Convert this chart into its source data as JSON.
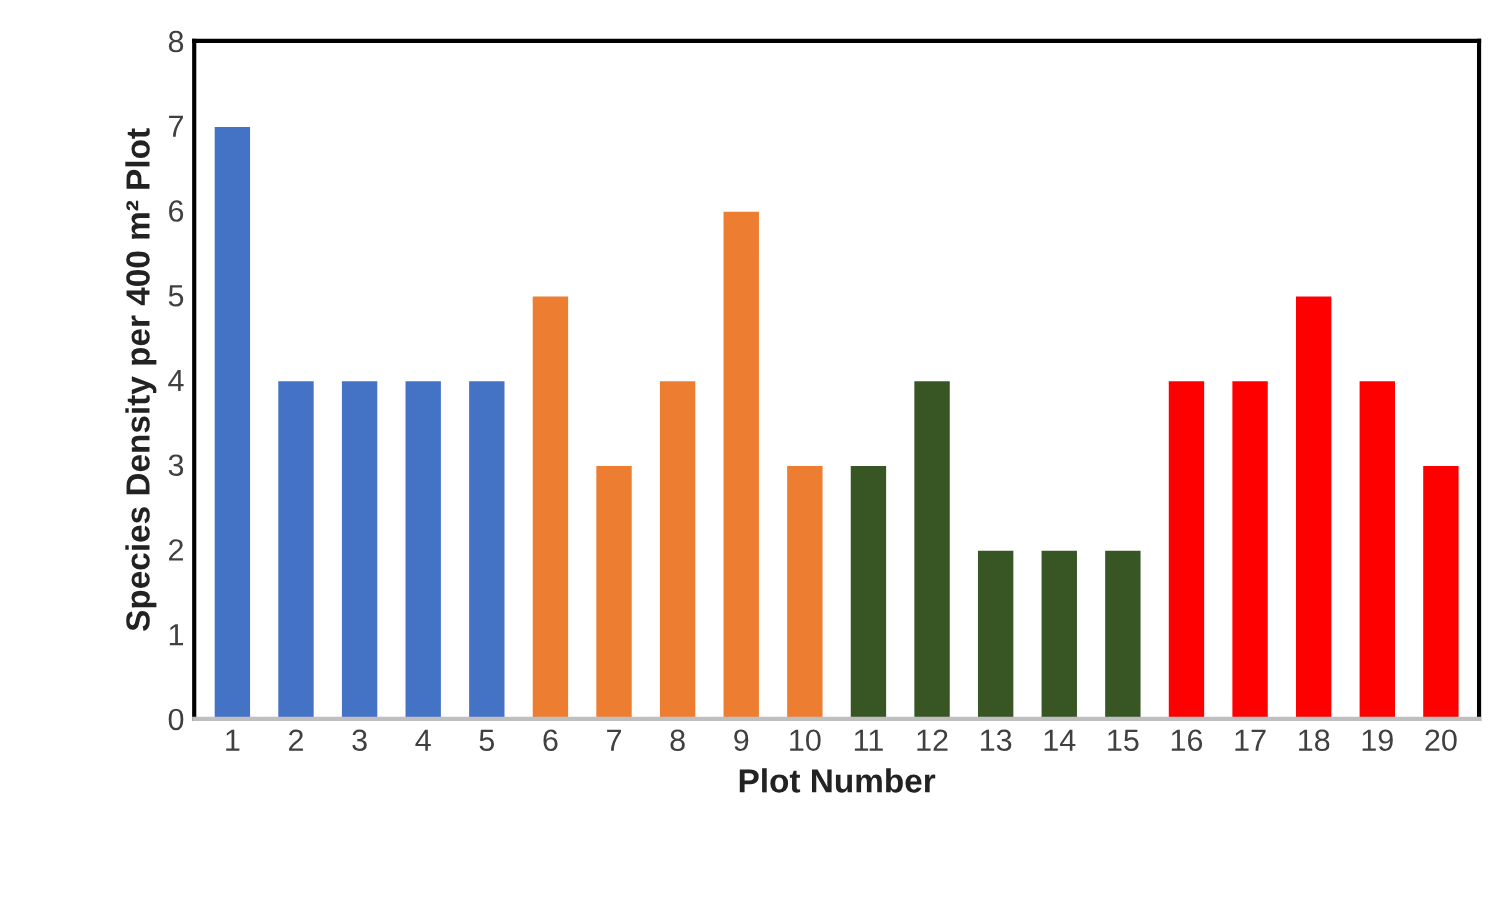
{
  "chart_data": {
    "type": "bar",
    "xlabel": "Plot Number",
    "ylabel": "Species Density per 400 m² Plot",
    "categories": [
      "1",
      "2",
      "3",
      "4",
      "5",
      "6",
      "7",
      "8",
      "9",
      "10",
      "11",
      "12",
      "13",
      "14",
      "15",
      "16",
      "17",
      "18",
      "19",
      "20"
    ],
    "values": [
      7,
      4,
      4,
      4,
      4,
      5,
      3,
      4,
      6,
      3,
      3,
      4,
      2,
      2,
      2,
      4,
      4,
      5,
      4,
      3
    ],
    "colors": [
      "#4472c4",
      "#4472c4",
      "#4472c4",
      "#4472c4",
      "#4472c4",
      "#ed7d31",
      "#ed7d31",
      "#ed7d31",
      "#ed7d31",
      "#ed7d31",
      "#375623",
      "#375623",
      "#375623",
      "#375623",
      "#375623",
      "#ff0000",
      "#ff0000",
      "#ff0000",
      "#ff0000",
      "#ff0000"
    ],
    "ylim": [
      0,
      8
    ],
    "yticks": [
      0,
      1,
      2,
      3,
      4,
      5,
      6,
      7,
      8
    ],
    "grid": false,
    "legend": false
  }
}
